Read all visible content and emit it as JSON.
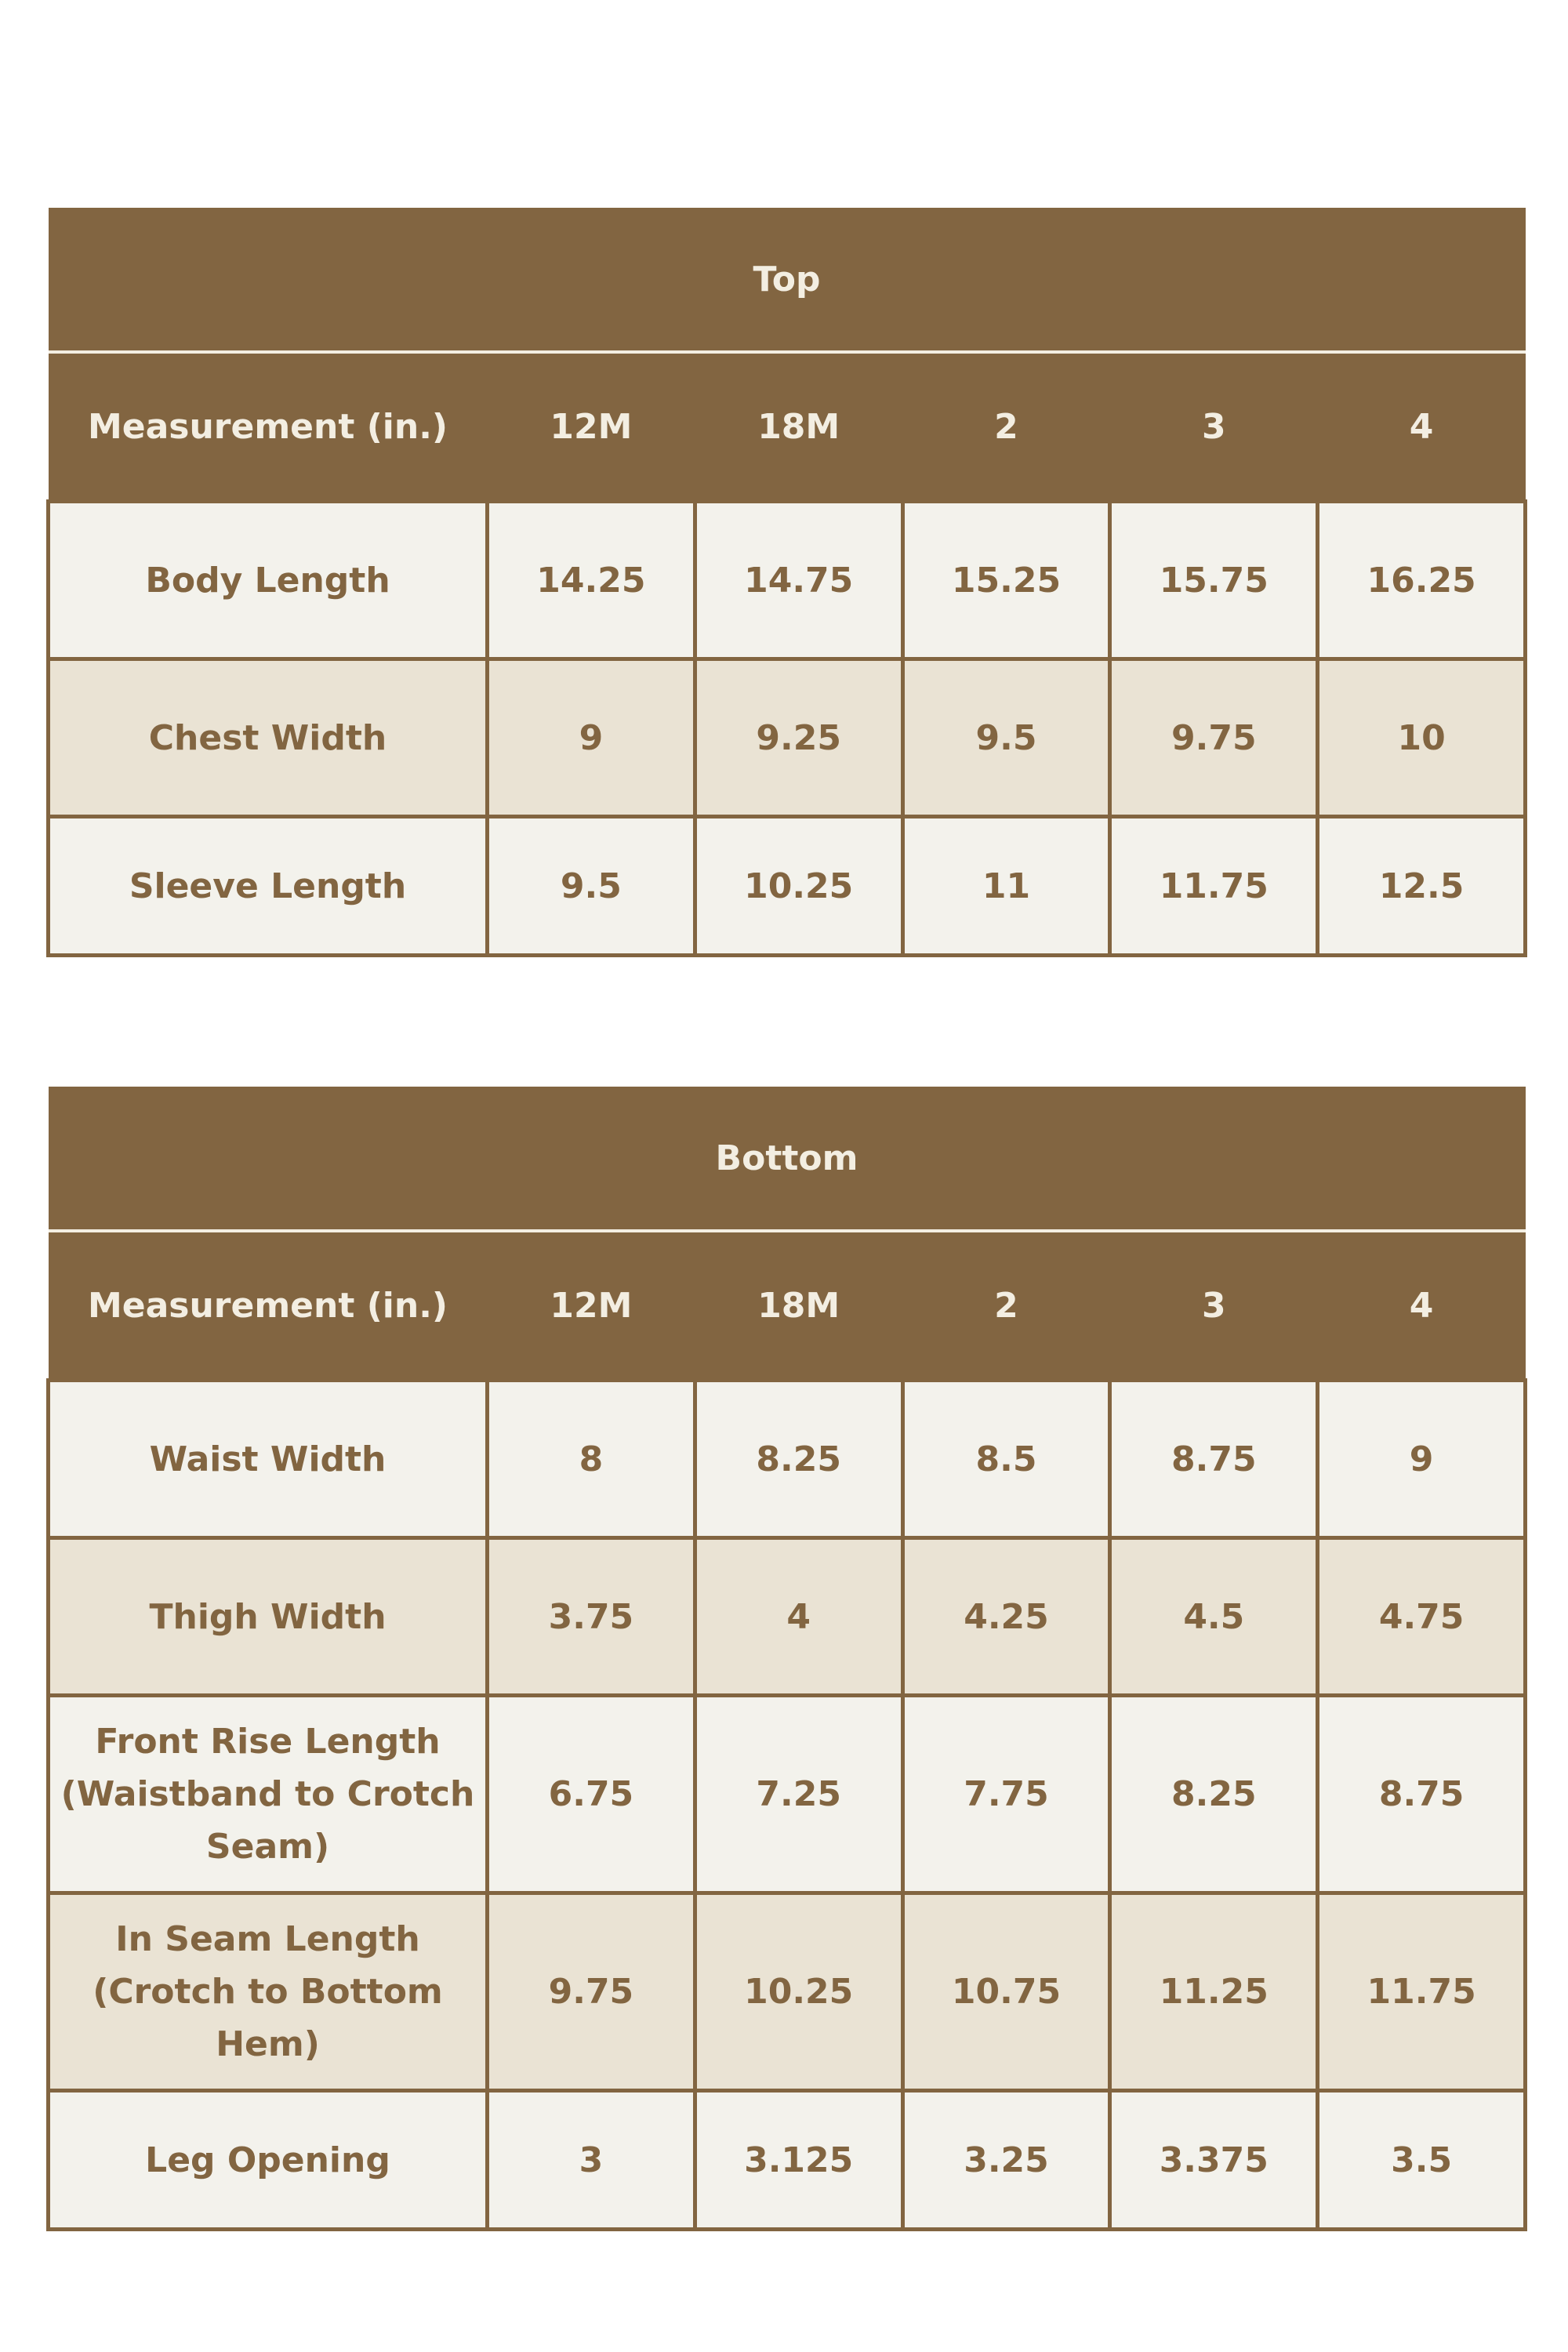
{
  "top_table": {
    "title": "Top",
    "headers": [
      "Measurement (in.)",
      "12M",
      "18M",
      "2",
      "3",
      "4"
    ],
    "rows": [
      {
        "label": "Body Length",
        "values": [
          "14.25",
          "14.75",
          "15.25",
          "15.75",
          "16.25"
        ]
      },
      {
        "label": "Chest Width",
        "values": [
          "9",
          "9.25",
          "9.5",
          "9.75",
          "10"
        ]
      },
      {
        "label": "Sleeve Length",
        "values": [
          "9.5",
          "10.25",
          "11",
          "11.75",
          "12.5"
        ]
      }
    ]
  },
  "bottom_table": {
    "title": "Bottom",
    "headers": [
      "Measurement (in.)",
      "12M",
      "18M",
      "2",
      "3",
      "4"
    ],
    "rows": [
      {
        "label": "Waist Width",
        "values": [
          "8",
          "8.25",
          "8.5",
          "8.75",
          "9"
        ]
      },
      {
        "label": "Thigh Width",
        "values": [
          "3.75",
          "4",
          "4.25",
          "4.5",
          "4.75"
        ]
      },
      {
        "label": "Front Rise Length (Waistband to Crotch Seam)",
        "values": [
          "6.75",
          "7.25",
          "7.75",
          "8.25",
          "8.75"
        ]
      },
      {
        "label": "In Seam Length (Crotch to Bottom Hem)",
        "values": [
          "9.75",
          "10.25",
          "10.75",
          "11.25",
          "11.75"
        ]
      },
      {
        "label": "Leg Opening",
        "values": [
          "3",
          "3.125",
          "3.25",
          "3.375",
          "3.5"
        ]
      }
    ]
  }
}
